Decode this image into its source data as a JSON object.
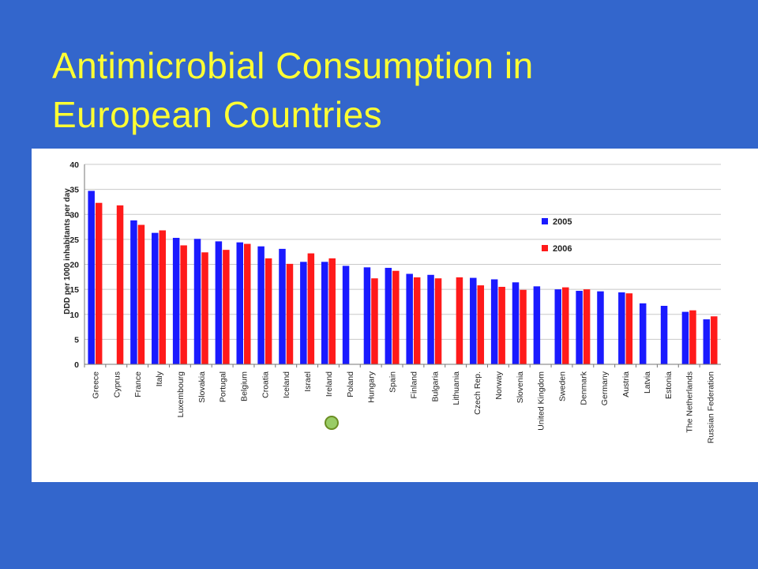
{
  "slide": {
    "title_line1": "Antimicrobial Consumption in",
    "title_line2": "European Countries",
    "background": "#3366cc",
    "title_color": "#ffff33"
  },
  "chart_data": {
    "type": "bar",
    "ylabel": "DDD per 1000 inhabitants per day",
    "xlabel": "",
    "ylim": [
      0,
      40
    ],
    "yticks": [
      0,
      5,
      10,
      15,
      20,
      25,
      30,
      35,
      40
    ],
    "grid": true,
    "legend_position": "right",
    "categories": [
      "Greece",
      "Cyprus",
      "France",
      "Italy",
      "Luxembourg",
      "Slovakia",
      "Portugal",
      "Belgium",
      "Croatia",
      "Iceland",
      "Israel",
      "Ireland",
      "Poland",
      "Hungary",
      "Spain",
      "Finland",
      "Bulgaria",
      "Lithuania",
      "Czech Rep.",
      "Norway",
      "Slovenia",
      "United Kingdom",
      "Sweden",
      "Denmark",
      "Germany",
      "Austria",
      "Latvia",
      "Estonia",
      "The Netherlands",
      "Russian Federation"
    ],
    "series": [
      {
        "name": "2005",
        "color": "#1a1aff",
        "values": [
          34.7,
          null,
          28.8,
          26.3,
          25.3,
          25.1,
          24.6,
          24.4,
          23.6,
          23.1,
          20.5,
          20.5,
          19.7,
          19.4,
          19.3,
          18.1,
          17.9,
          null,
          17.3,
          17.0,
          16.4,
          15.6,
          15.0,
          14.7,
          14.6,
          14.4,
          12.2,
          11.7,
          10.5,
          9.0
        ]
      },
      {
        "name": "2006",
        "color": "#ff1a1a",
        "values": [
          32.3,
          31.8,
          27.9,
          26.8,
          23.8,
          22.4,
          22.9,
          24.1,
          21.2,
          20.1,
          22.2,
          21.2,
          null,
          17.2,
          18.7,
          17.4,
          17.2,
          17.4,
          15.8,
          15.5,
          14.9,
          null,
          15.4,
          15.0,
          null,
          14.2,
          null,
          null,
          10.8,
          9.6
        ]
      }
    ]
  }
}
